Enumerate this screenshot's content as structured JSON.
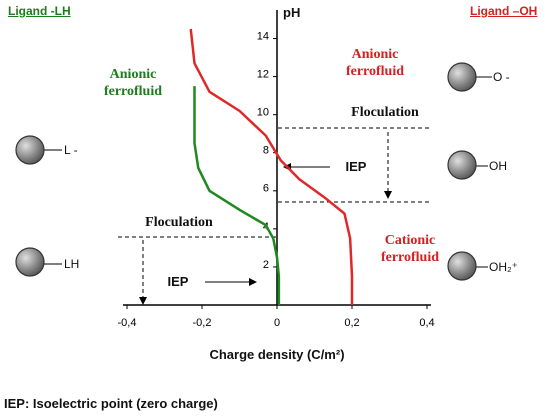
{
  "chart_data": {
    "type": "line",
    "x_label": "Charge density (C/m²)",
    "y_label": "pH",
    "footnote": "IEP: Isoelectric point (zero charge)",
    "annotations": [
      "Anionic ferrofluid",
      "Anionic ferrofluid",
      "Cationic ferrofluid",
      "Floculation",
      "Floculation",
      "IEP",
      "IEP",
      "L -",
      "LH",
      "O -",
      "OH",
      "OH₂⁺"
    ],
    "xlim": [
      -0.4,
      0.4
    ],
    "ylim": [
      0,
      15.5
    ],
    "xticks": [
      {
        "value": -0.4,
        "label": "-0,4"
      },
      {
        "value": -0.2,
        "label": "-0,2"
      },
      0,
      {
        "value": 0.2,
        "label": "0,2"
      },
      {
        "value": 0.4,
        "label": "0,4"
      }
    ],
    "yticks": [
      2,
      4,
      6,
      8,
      10,
      12,
      14
    ],
    "series": [
      {
        "name": "Ligand -LH",
        "color": "#1e8a1e",
        "x": [
          -0.22,
          -0.22,
          -0.21,
          -0.18,
          -0.1,
          -0.03,
          -0.01,
          0,
          0.005,
          0.005
        ],
        "values": [
          11.5,
          8.5,
          7.2,
          6,
          5,
          4.2,
          3.5,
          2.5,
          1.5,
          0
        ]
      },
      {
        "name": "Ligand –OH",
        "color": "#e02828",
        "x": [
          -0.23,
          -0.22,
          -0.18,
          -0.1,
          -0.03,
          0.01,
          0.06,
          0.13,
          0.18,
          0.195,
          0.2,
          0.2
        ],
        "values": [
          14.5,
          12.7,
          11.2,
          10.2,
          8.9,
          7.6,
          6.6,
          5.6,
          4.8,
          3.5,
          1.5,
          0
        ]
      }
    ]
  }
}
